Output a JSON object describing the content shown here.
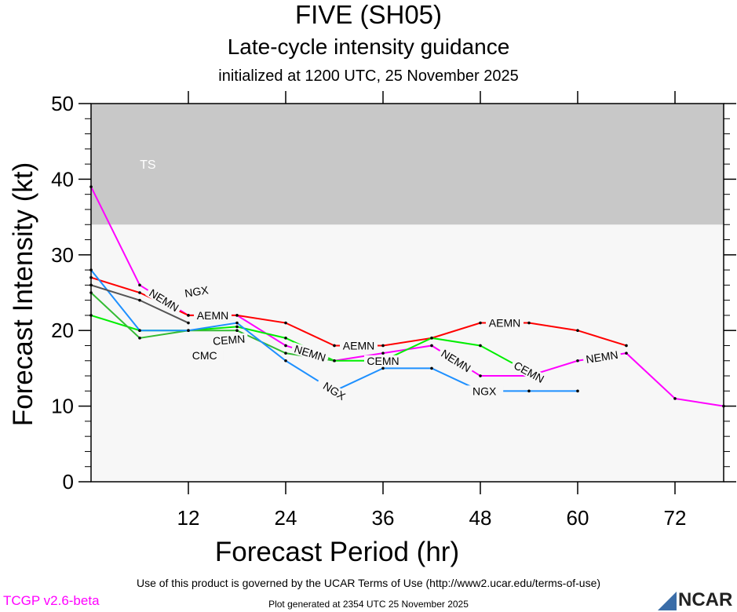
{
  "header": {
    "title": "FIVE (SH05)",
    "subtitle": "Late-cycle intensity guidance",
    "init": "initialized at 1200 UTC, 25 November 2025"
  },
  "footer": {
    "terms": "Use of this product is governed by the UCAR Terms of Use (http://www2.ucar.edu/terms-of-use)",
    "version": "TCGP v2.6-beta",
    "generated": "Plot generated at 2354 UTC   25 November 2025",
    "logo": "NCAR"
  },
  "colors": {
    "ts_band": "#c8c8c8",
    "plot_bg": "#f7f7f7",
    "version_text": "#ff00ff"
  },
  "chart_data": {
    "type": "line",
    "xlabel": "Forecast Period (hr)",
    "ylabel": "Forecast Intensity (kt)",
    "xlim": [
      0,
      78
    ],
    "ylim": [
      0,
      50
    ],
    "xticks": [
      12,
      24,
      36,
      48,
      60,
      72
    ],
    "yticks": [
      0,
      10,
      20,
      30,
      40,
      50
    ],
    "bands": [
      {
        "label": "TS",
        "from": 34,
        "to": 50
      }
    ],
    "grid": false,
    "series": [
      {
        "name": "NEMN",
        "color": "#ff00ff",
        "x": [
          0,
          6,
          12,
          18,
          24,
          30,
          36,
          42,
          48,
          54,
          60,
          66,
          72,
          78
        ],
        "y": [
          39,
          26,
          22,
          22,
          18,
          16,
          17,
          18,
          14,
          14,
          16,
          17,
          11,
          10
        ],
        "label_at": [
          9,
          27,
          45,
          63
        ]
      },
      {
        "name": "AEMN",
        "color": "#ff0000",
        "x": [
          0,
          6,
          12,
          18,
          24,
          30,
          36,
          42,
          48,
          54,
          60,
          66
        ],
        "y": [
          27,
          25,
          22,
          22,
          21,
          18,
          18,
          19,
          21,
          21,
          20,
          18
        ],
        "label_at": [
          15,
          33,
          51
        ]
      },
      {
        "name": "CEMN",
        "color": "#00ee00",
        "x": [
          0,
          6,
          12,
          18,
          24,
          30,
          36,
          42,
          48,
          54
        ],
        "y": [
          22,
          20,
          20,
          20.5,
          19,
          16,
          16,
          19,
          18,
          14.5
        ],
        "label_at": [
          17,
          36,
          54
        ]
      },
      {
        "name": "CMC",
        "color": "#33bb33",
        "x": [
          0,
          6,
          12,
          18,
          24,
          30
        ],
        "y": [
          25,
          19,
          20,
          20,
          17,
          16
        ],
        "label_at": [
          14
        ]
      },
      {
        "name": "NGX",
        "color": "#1e90ff",
        "x": [
          0,
          6,
          12,
          18,
          24,
          30,
          36,
          42,
          48,
          54,
          60
        ],
        "y": [
          28,
          20,
          20,
          21,
          16,
          12,
          15,
          15,
          12,
          12,
          12
        ],
        "label_at": [
          13,
          30,
          48.5
        ]
      },
      {
        "name": "",
        "color": "#555555",
        "x": [
          0,
          6,
          12
        ],
        "y": [
          26,
          24,
          21
        ],
        "label_at": []
      }
    ]
  }
}
